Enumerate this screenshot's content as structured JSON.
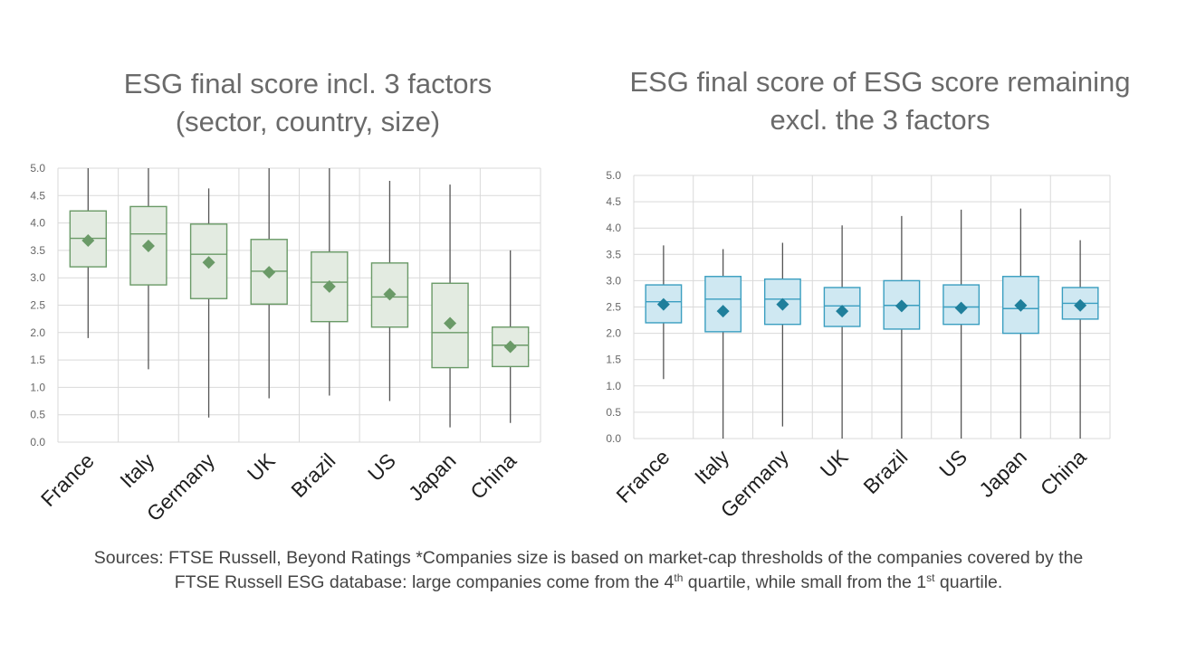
{
  "colors": {
    "left_fill": "#e3ebe1",
    "left_stroke": "#6a9a67",
    "left_marker": "#6a9a67",
    "right_fill": "#cfe8f2",
    "right_stroke": "#3a9ec0",
    "right_marker": "#1f7f9b",
    "whisker": "#555555",
    "grid": "#d9d9d9"
  },
  "chart_data": [
    {
      "type": "boxplot",
      "title_lines": [
        "ESG final score incl. 3 factors",
        "(sector, country, size)"
      ],
      "categories": [
        "France",
        "Italy",
        "Germany",
        "UK",
        "Brazil",
        "US",
        "Japan",
        "China"
      ],
      "yticks": [
        "0.0",
        "0.5",
        "1.0",
        "1.5",
        "2.0",
        "2.5",
        "3.0",
        "3.5",
        "4.0",
        "4.5",
        "5.0"
      ],
      "ylim": [
        0,
        5
      ],
      "grid": true,
      "boxes": [
        {
          "min": 1.9,
          "q1": 3.2,
          "median": 3.72,
          "q3": 4.22,
          "max": 5.0,
          "mean": 3.68
        },
        {
          "min": 1.33,
          "q1": 2.87,
          "median": 3.8,
          "q3": 4.3,
          "max": 5.0,
          "mean": 3.58
        },
        {
          "min": 0.45,
          "q1": 2.62,
          "median": 3.43,
          "q3": 3.98,
          "max": 4.63,
          "mean": 3.28
        },
        {
          "min": 0.8,
          "q1": 2.52,
          "median": 3.12,
          "q3": 3.7,
          "max": 5.0,
          "mean": 3.1
        },
        {
          "min": 0.85,
          "q1": 2.2,
          "median": 2.92,
          "q3": 3.47,
          "max": 5.0,
          "mean": 2.84
        },
        {
          "min": 0.75,
          "q1": 2.1,
          "median": 2.65,
          "q3": 3.27,
          "max": 4.77,
          "mean": 2.7
        },
        {
          "min": 0.27,
          "q1": 1.36,
          "median": 2.0,
          "q3": 2.9,
          "max": 4.7,
          "mean": 2.17
        },
        {
          "min": 0.35,
          "q1": 1.38,
          "median": 1.77,
          "q3": 2.1,
          "max": 3.5,
          "mean": 1.74
        }
      ]
    },
    {
      "type": "boxplot",
      "title_lines": [
        "ESG final score of ESG score remaining",
        "excl. the 3 factors"
      ],
      "categories": [
        "France",
        "Italy",
        "Germany",
        "UK",
        "Brazil",
        "US",
        "Japan",
        "China"
      ],
      "yticks": [
        "0.0",
        "0.5",
        "1.0",
        "1.5",
        "2.0",
        "2.5",
        "3.0",
        "3.5",
        "4.0",
        "4.5",
        "5.0"
      ],
      "ylim": [
        0,
        5
      ],
      "grid": true,
      "boxes": [
        {
          "min": 1.13,
          "q1": 2.2,
          "median": 2.6,
          "q3": 2.92,
          "max": 3.67,
          "mean": 2.55
        },
        {
          "min": 0.0,
          "q1": 2.03,
          "median": 2.65,
          "q3": 3.08,
          "max": 3.6,
          "mean": 2.42
        },
        {
          "min": 0.23,
          "q1": 2.17,
          "median": 2.65,
          "q3": 3.03,
          "max": 3.72,
          "mean": 2.55
        },
        {
          "min": 0.0,
          "q1": 2.13,
          "median": 2.52,
          "q3": 2.87,
          "max": 4.05,
          "mean": 2.42
        },
        {
          "min": 0.0,
          "q1": 2.08,
          "median": 2.53,
          "q3": 3.0,
          "max": 4.23,
          "mean": 2.52
        },
        {
          "min": 0.0,
          "q1": 2.17,
          "median": 2.5,
          "q3": 2.92,
          "max": 4.35,
          "mean": 2.48
        },
        {
          "min": 0.0,
          "q1": 2.0,
          "median": 2.47,
          "q3": 3.08,
          "max": 4.37,
          "mean": 2.53
        },
        {
          "min": 0.0,
          "q1": 2.27,
          "median": 2.57,
          "q3": 2.87,
          "max": 3.77,
          "mean": 2.53
        }
      ]
    }
  ],
  "footnote": {
    "line1": "Sources: FTSE Russell, Beyond Ratings *Companies size is based on market-cap thresholds of the companies covered by the",
    "line2_a": "FTSE Russell ESG database: large companies come from the 4",
    "line2_sup1": "th",
    "line2_b": " quartile, while small from the 1",
    "line2_sup2": "st",
    "line2_c": " quartile."
  }
}
